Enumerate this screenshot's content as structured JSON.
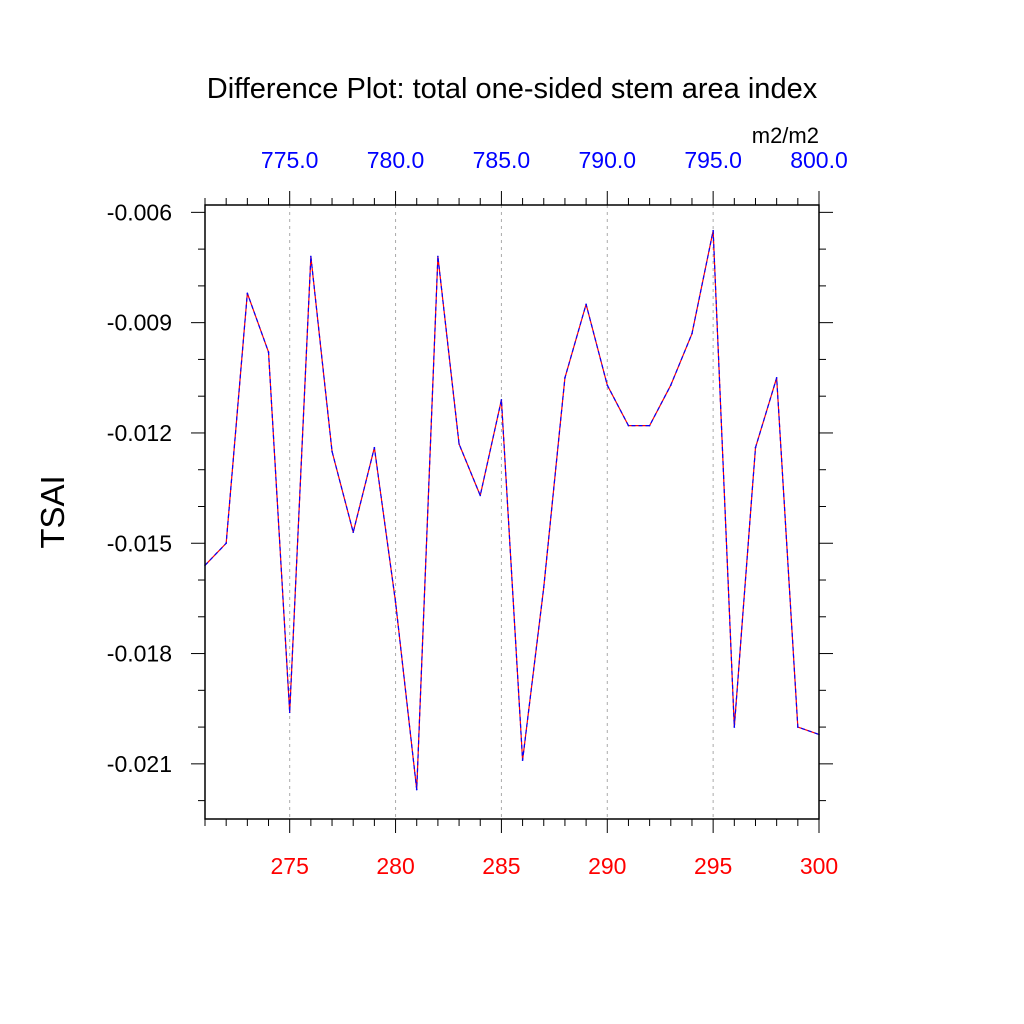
{
  "chart_data": {
    "type": "line",
    "title": "Difference Plot: total one-sided stem area index",
    "ylabel": "TSAI",
    "units": "m2/m2",
    "xlim": [
      271,
      300
    ],
    "ylim": [
      -0.0225,
      -0.0058
    ],
    "x_ticks": [
      275,
      280,
      285,
      290,
      295,
      300
    ],
    "x_tick_labels": [
      "275",
      "280",
      "285",
      "290",
      "295",
      "300"
    ],
    "top_ticks": [
      275,
      280,
      285,
      290,
      295,
      300
    ],
    "top_tick_labels": [
      "775.0",
      "780.0",
      "785.0",
      "790.0",
      "795.0",
      "800.0"
    ],
    "y_ticks": [
      -0.006,
      -0.009,
      -0.012,
      -0.015,
      -0.018,
      -0.021
    ],
    "y_tick_labels": [
      "-0.006",
      "-0.009",
      "-0.012",
      "-0.015",
      "-0.018",
      "-0.021"
    ],
    "grid": "vertical dotted at major x ticks",
    "series": [
      {
        "name": "difference",
        "x": [
          271,
          272,
          273,
          274,
          275,
          276,
          277,
          278,
          279,
          280,
          281,
          282,
          283,
          284,
          285,
          286,
          287,
          288,
          289,
          290,
          291,
          292,
          293,
          294,
          295,
          296,
          297,
          298,
          299,
          300
        ],
        "values": [
          -0.0156,
          -0.015,
          -0.0082,
          -0.0098,
          -0.0196,
          -0.0072,
          -0.0125,
          -0.0147,
          -0.0124,
          -0.0166,
          -0.0217,
          -0.0072,
          -0.0123,
          -0.0137,
          -0.0111,
          -0.0209,
          -0.0162,
          -0.0105,
          -0.0085,
          -0.0107,
          -0.0118,
          -0.0118,
          -0.0107,
          -0.0093,
          -0.0065,
          -0.02,
          -0.0124,
          -0.0105,
          -0.02,
          -0.0202
        ]
      }
    ],
    "colors": {
      "line_primary": "#ff0000",
      "line_secondary": "#0000ff",
      "bottom_tick_labels": "#ff0000",
      "top_tick_labels": "#0000ff",
      "axes": "#000000",
      "grid": "#aaaaaa"
    }
  }
}
